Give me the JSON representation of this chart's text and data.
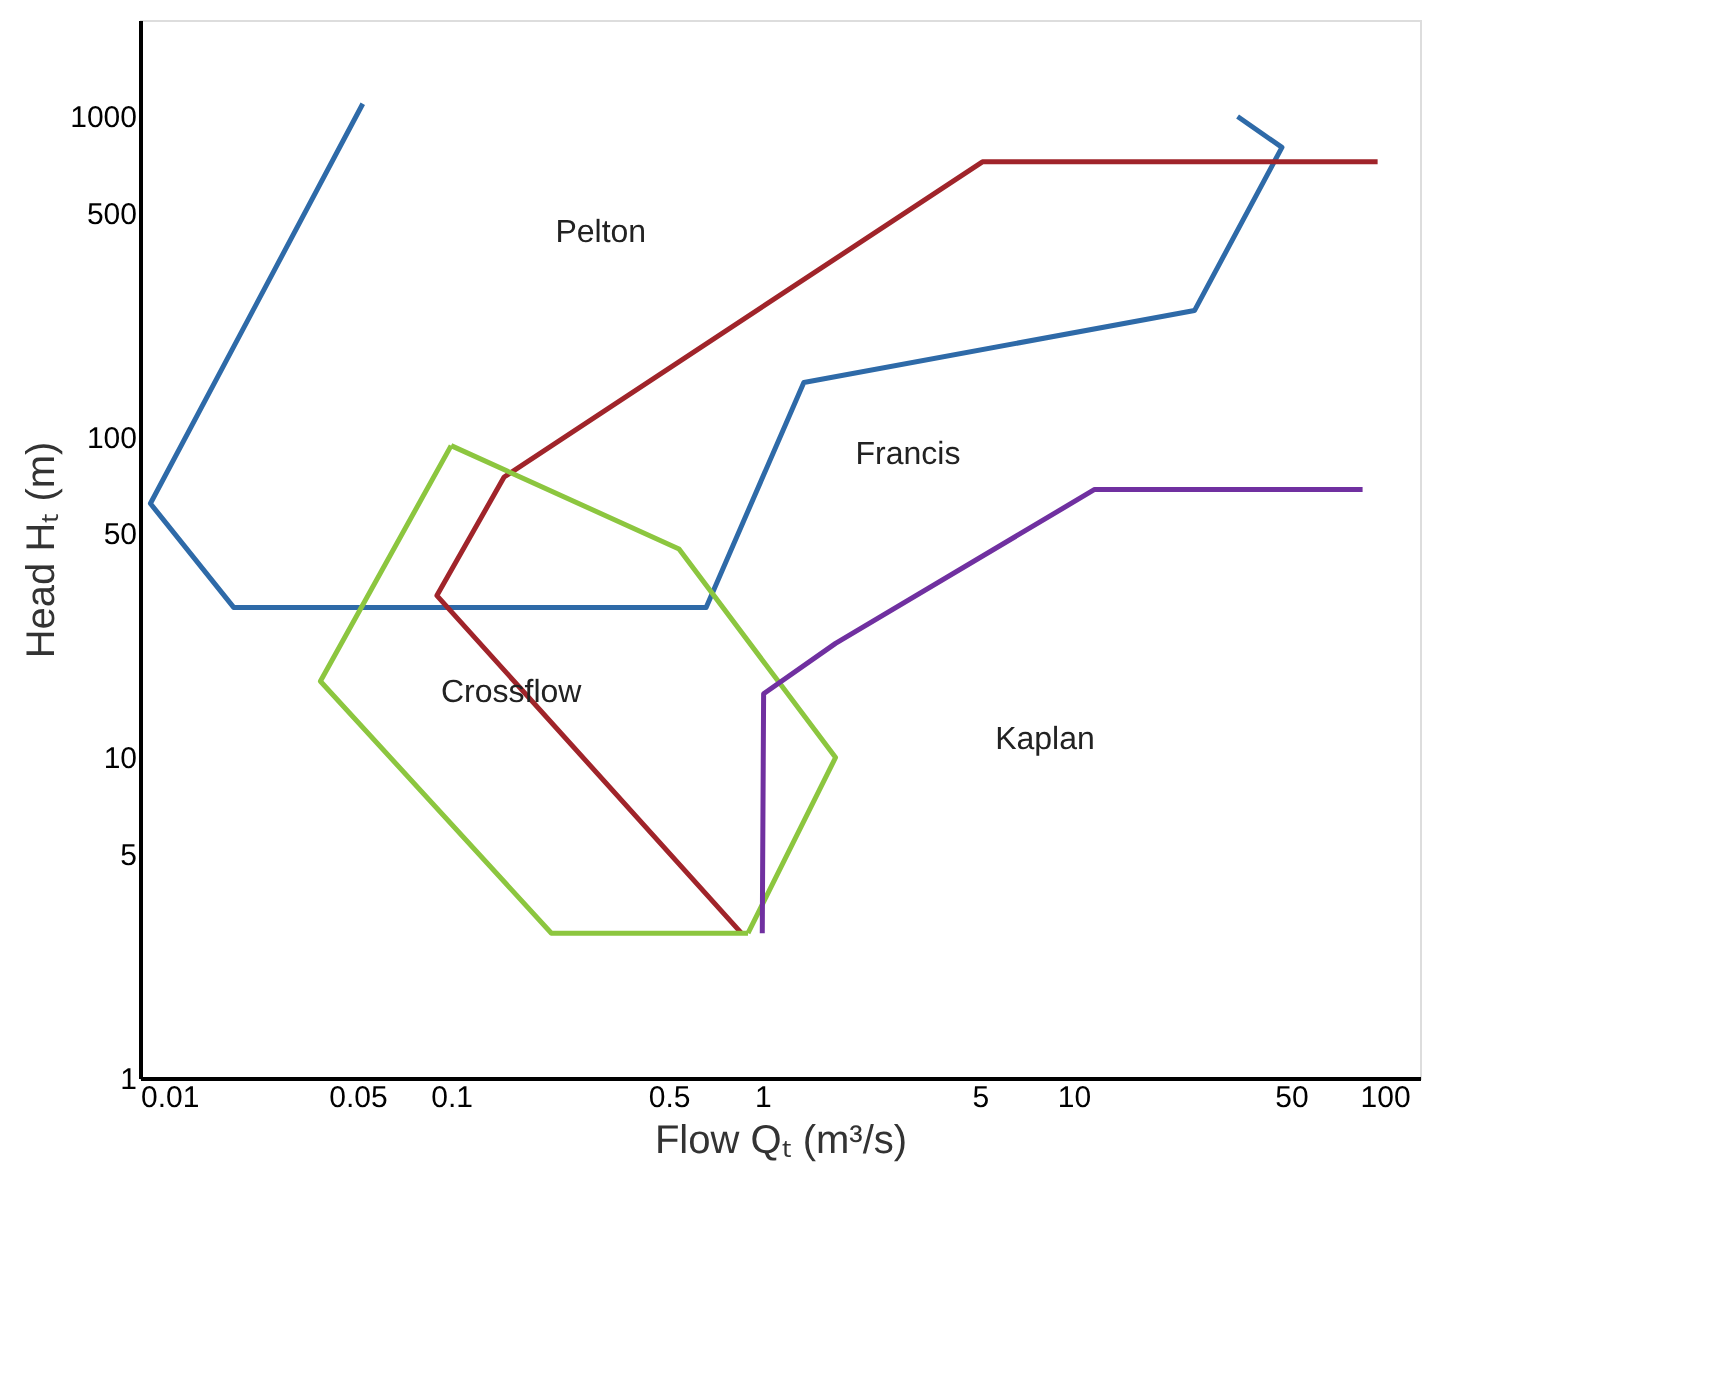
{
  "chart_data": {
    "type": "line",
    "xlabel": "Flow Qₜ (m³/s)",
    "ylabel": "Head Hₜ (m)",
    "log": "xy",
    "grid": false,
    "marker": "none",
    "line_style": "solid",
    "xlim": [
      0.01,
      130
    ],
    "xticks": [
      0.01,
      0.05,
      0.1,
      0.5,
      1,
      5,
      10,
      50,
      100
    ],
    "ylim": [
      1,
      2000
    ],
    "yticks": [
      1,
      5,
      10,
      50,
      100,
      500,
      1000
    ],
    "series": [
      {
        "color": "#2e6aa8",
        "x": [
          0.052,
          0.0108,
          0.02,
          0.66,
          1.36,
          24.5,
          46.8,
          33.7
        ],
        "values": [
          1096,
          62,
          29.4,
          29.4,
          148,
          248,
          801,
          1000
        ]
      },
      {
        "color": "#a0242a",
        "x": [
          95,
          5.1,
          0.148,
          0.09,
          0.857
        ],
        "values": [
          722,
          722,
          75,
          32,
          2.83
        ]
      },
      {
        "color": "#8cc63f",
        "x": [
          0.1,
          0.54,
          1.72,
          0.9
        ],
        "values": [
          94,
          44.7,
          10,
          2.83
        ]
      },
      {
        "color": "#8cc63f",
        "x": [
          0.9,
          0.21,
          0.038,
          0.1
        ],
        "values": [
          2.83,
          2.83,
          17.3,
          94
        ]
      },
      {
        "color": "#7030a0",
        "x": [
          1.0,
          1.01,
          1.72,
          11.7,
          85
        ],
        "values": [
          2.83,
          15.8,
          22.7,
          68.6,
          68.6
        ]
      }
    ],
    "annotations": [
      "Pelton",
      "Francis",
      "Crossflow",
      "Kaplan"
    ]
  }
}
